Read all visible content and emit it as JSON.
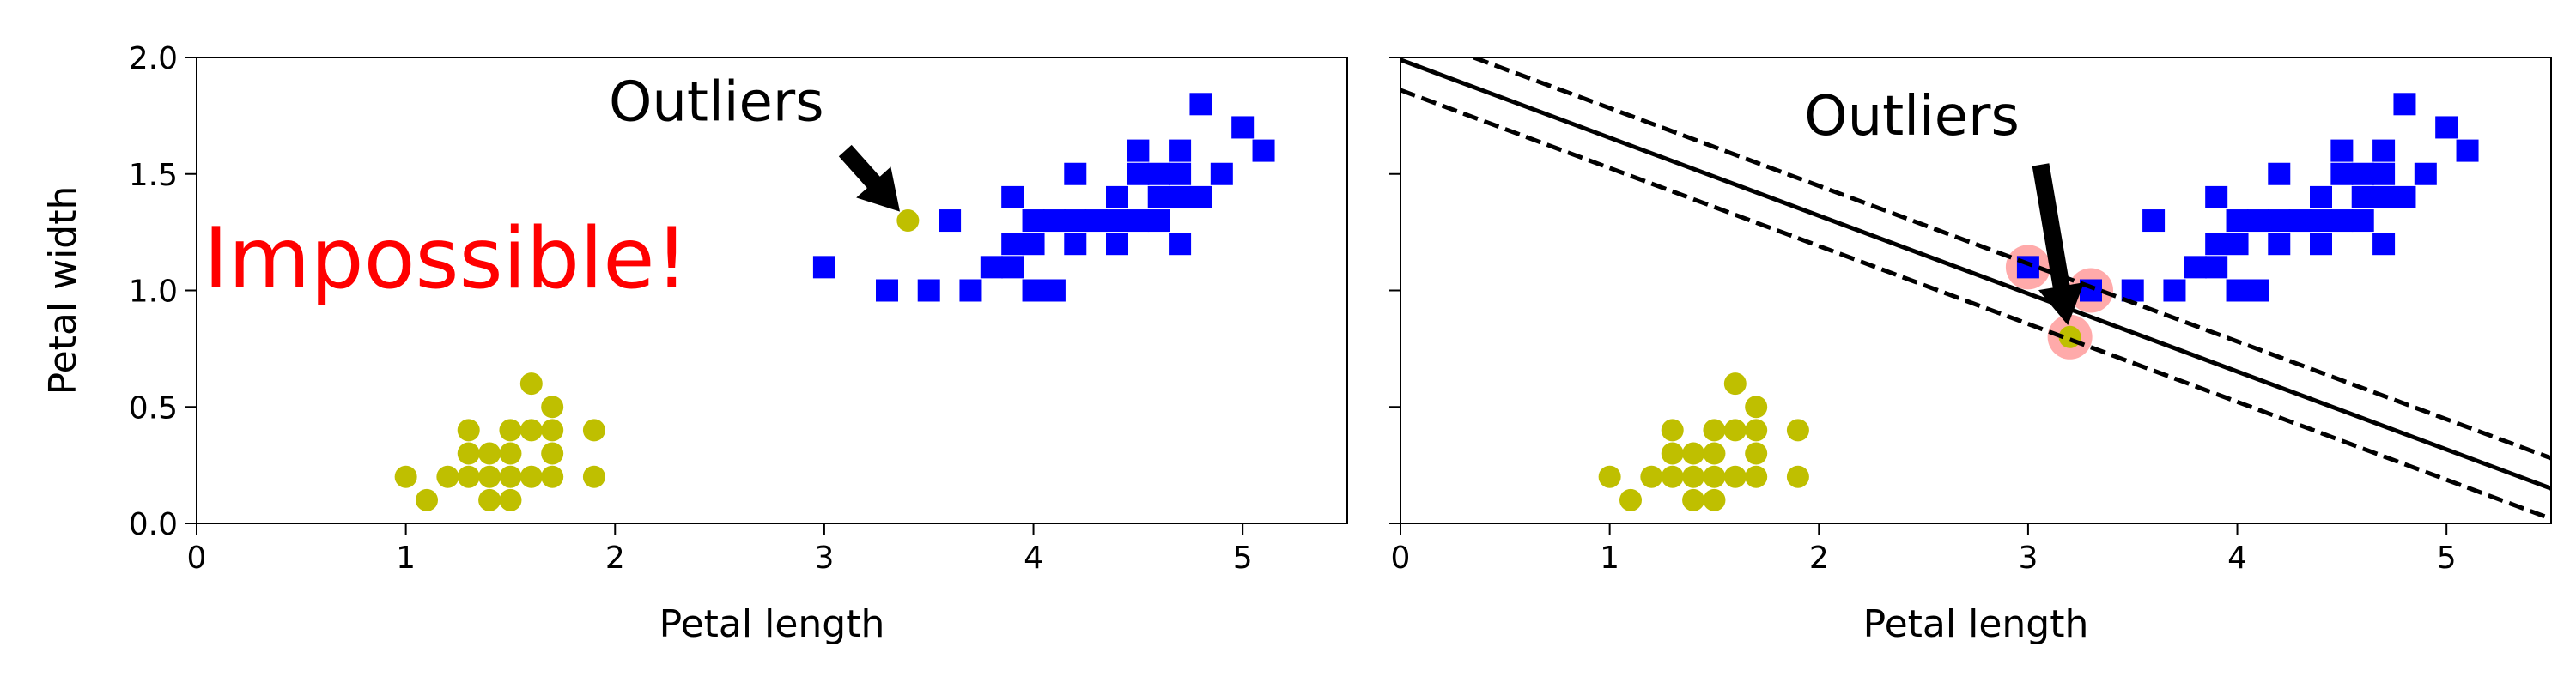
{
  "chart_data": [
    {
      "type": "scatter",
      "xlabel": "Petal length",
      "ylabel": "Petal width",
      "xlim": [
        0,
        5.5
      ],
      "ylim": [
        0,
        2
      ],
      "xticks": [
        0,
        1,
        2,
        3,
        4,
        5
      ],
      "yticks": [
        {
          "value": 0,
          "label": "0.0"
        },
        {
          "value": 0.5,
          "label": "0.5"
        },
        {
          "value": 1,
          "label": "1.0"
        },
        {
          "value": 1.5,
          "label": "1.5"
        },
        {
          "value": 2,
          "label": "2.0"
        }
      ],
      "series": [
        {
          "marker": "circle",
          "color": "#bfbf00",
          "x": [
            1.0,
            1.1,
            1.2,
            1.3,
            1.3,
            1.3,
            1.4,
            1.4,
            1.4,
            1.5,
            1.5,
            1.5,
            1.5,
            1.6,
            1.6,
            1.6,
            1.7,
            1.7,
            1.7,
            1.7,
            1.9,
            1.9,
            3.4
          ],
          "y": [
            0.2,
            0.1,
            0.2,
            0.2,
            0.3,
            0.4,
            0.1,
            0.2,
            0.3,
            0.1,
            0.2,
            0.3,
            0.4,
            0.2,
            0.4,
            0.6,
            0.2,
            0.3,
            0.4,
            0.5,
            0.2,
            0.4,
            1.3
          ]
        },
        {
          "marker": "square",
          "color": "#0000ff",
          "x": [
            3.0,
            3.3,
            3.5,
            3.6,
            3.7,
            3.8,
            3.9,
            3.9,
            3.9,
            4.0,
            4.0,
            4.0,
            4.1,
            4.1,
            4.2,
            4.2,
            4.2,
            4.3,
            4.4,
            4.4,
            4.4,
            4.5,
            4.5,
            4.5,
            4.6,
            4.6,
            4.6,
            4.7,
            4.7,
            4.7,
            4.7,
            4.8,
            4.8,
            4.9,
            5.0,
            5.1
          ],
          "y": [
            1.1,
            1.0,
            1.0,
            1.3,
            1.0,
            1.1,
            1.1,
            1.2,
            1.4,
            1.0,
            1.2,
            1.3,
            1.0,
            1.3,
            1.2,
            1.3,
            1.5,
            1.3,
            1.2,
            1.3,
            1.4,
            1.3,
            1.5,
            1.6,
            1.3,
            1.4,
            1.5,
            1.2,
            1.4,
            1.5,
            1.6,
            1.4,
            1.8,
            1.5,
            1.7,
            1.6
          ]
        }
      ],
      "annotations": [
        {
          "text": "Outliers",
          "xy": [
            3.4,
            1.3
          ],
          "xytext": [
            3.1,
            1.6
          ]
        }
      ],
      "note": {
        "text": "Impossible!",
        "color": "#ff0000"
      }
    },
    {
      "type": "scatter",
      "xlabel": "Petal length",
      "xlim": [
        0,
        5.5
      ],
      "ylim": [
        0,
        2
      ],
      "xticks": [
        0,
        1,
        2,
        3,
        4,
        5
      ],
      "yticks": [
        0,
        0.5,
        1,
        1.5,
        2
      ],
      "ytick_labels": false,
      "series": [
        {
          "marker": "halo",
          "color": "#ffaaaa",
          "x": [
            3.0,
            3.3,
            3.2
          ],
          "y": [
            1.1,
            1.0,
            0.8
          ]
        },
        {
          "marker": "circle",
          "color": "#bfbf00",
          "x": [
            1.0,
            1.1,
            1.2,
            1.3,
            1.3,
            1.3,
            1.4,
            1.4,
            1.4,
            1.5,
            1.5,
            1.5,
            1.5,
            1.6,
            1.6,
            1.6,
            1.7,
            1.7,
            1.7,
            1.7,
            1.9,
            1.9,
            3.2
          ],
          "y": [
            0.2,
            0.1,
            0.2,
            0.2,
            0.3,
            0.4,
            0.1,
            0.2,
            0.3,
            0.1,
            0.2,
            0.3,
            0.4,
            0.2,
            0.4,
            0.6,
            0.2,
            0.3,
            0.4,
            0.5,
            0.2,
            0.4,
            0.8
          ]
        },
        {
          "marker": "square",
          "color": "#0000ff",
          "x": [
            3.0,
            3.3,
            3.5,
            3.6,
            3.7,
            3.8,
            3.9,
            3.9,
            3.9,
            4.0,
            4.0,
            4.0,
            4.1,
            4.1,
            4.2,
            4.2,
            4.2,
            4.3,
            4.4,
            4.4,
            4.4,
            4.5,
            4.5,
            4.5,
            4.6,
            4.6,
            4.6,
            4.7,
            4.7,
            4.7,
            4.7,
            4.8,
            4.8,
            4.9,
            5.0,
            5.1
          ],
          "y": [
            1.1,
            1.0,
            1.0,
            1.3,
            1.0,
            1.1,
            1.1,
            1.2,
            1.4,
            1.0,
            1.2,
            1.3,
            1.0,
            1.3,
            1.2,
            1.3,
            1.5,
            1.3,
            1.2,
            1.3,
            1.4,
            1.3,
            1.5,
            1.6,
            1.3,
            1.4,
            1.5,
            1.2,
            1.4,
            1.5,
            1.6,
            1.4,
            1.8,
            1.5,
            1.7,
            1.6
          ]
        },
        {
          "marker": "line",
          "style": "solid",
          "color": "#000000",
          "x": [
            0,
            5.5
          ],
          "y": [
            1.99,
            0.15
          ]
        },
        {
          "marker": "line",
          "style": "dashed",
          "color": "#000000",
          "x": [
            0.35,
            5.5
          ],
          "y": [
            2.0,
            0.28
          ]
        },
        {
          "marker": "line",
          "style": "dashed",
          "color": "#000000",
          "x": [
            0,
            5.5
          ],
          "y": [
            1.86,
            0.02
          ]
        }
      ],
      "annotations": [
        {
          "text": "Outliers",
          "xy": [
            3.2,
            0.8
          ],
          "xytext": [
            3.06,
            1.54
          ]
        }
      ]
    }
  ]
}
